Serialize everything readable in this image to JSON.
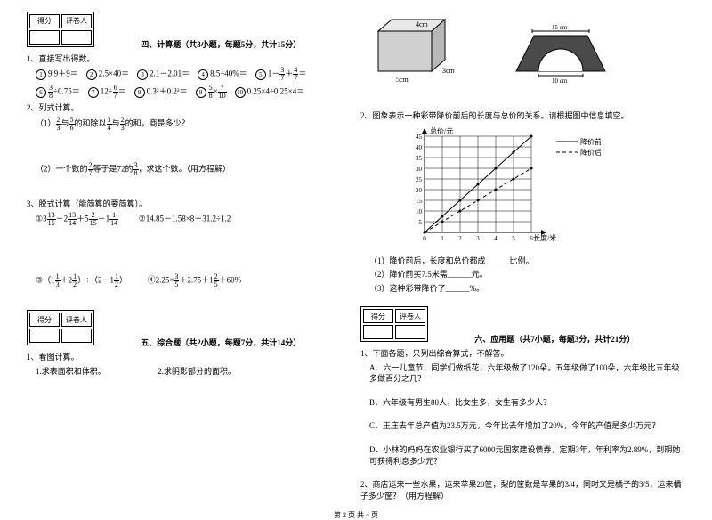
{
  "scorebox": {
    "score_label": "得分",
    "reviewer_label": "评卷人"
  },
  "sec4": {
    "title": "四、计算题（共3小题，每题5分，共计15分）",
    "q1": {
      "stem": "1、直接写出得数。",
      "i1": "9.9＋9＝",
      "i2": "2.5×40＝",
      "i3": "2.1－2.01＝",
      "i4": "8.5÷40%＝",
      "i6_pre": "÷0.75＝",
      "i8": "0.3²＋0.2²＝",
      "i10": "0.25×4÷0.25×4＝"
    },
    "q2": {
      "stem": "2、列式计算。",
      "p1_a": "（1）",
      "p1_b": "与",
      "p1_c": "的和除以",
      "p1_d": "与",
      "p1_e": "的和，商是多少？",
      "p2_a": "（2）一个数的",
      "p2_b": "等于是72的",
      "p2_c": "，求这个数。（用方程解）"
    },
    "q3": {
      "stem": "3、脱式计算（能简算的要简算）。",
      "i2": "②14.85－1.58×8＋31.2÷1.2",
      "i4": "④2.25×"
    }
  },
  "sec5": {
    "title": "五、综合题（共2小题，每题7分，共计14分）",
    "q1": {
      "stem": "1、看图计算。",
      "p1": "1.求表面积和体积。",
      "p2": "2.求阴影部分的面积。"
    },
    "cube": {
      "w_label": "5cm",
      "d_label": "3cm",
      "h_label": "4cm"
    },
    "trap": {
      "top": "15 cm",
      "arc": "10 cm"
    },
    "q2": {
      "stem": "2、图象表示一种彩带降价前后的长度与总价的关系。请根据图中信息填空。",
      "p1": "（1）降价前后，长度和总价都成______比例。",
      "p2": "（2）降价前买7.5米需______元。",
      "p3": "（3）这种彩带降价了______%。"
    },
    "chart": {
      "y_label": "总价/元",
      "x_label": "长度/米",
      "legend_before": "降价前",
      "legend_after": "降价后",
      "x_ticks": [
        "0",
        "1",
        "2",
        "3",
        "4",
        "5",
        "6"
      ],
      "y_ticks": [
        "5",
        "10",
        "15",
        "20",
        "25",
        "30",
        "35",
        "40",
        "45"
      ],
      "xlim": [
        0,
        6
      ],
      "ylim": [
        0,
        45
      ],
      "before": [
        [
          0,
          0
        ],
        [
          6,
          45
        ]
      ],
      "after": [
        [
          0,
          0
        ],
        [
          6,
          30
        ]
      ],
      "grid_color": "#000000",
      "bg": "#ffffff"
    }
  },
  "sec6": {
    "title": "六、应用题（共7小题，每题3分，共计21分）",
    "q1": {
      "stem": "1、下面各题，只列出综合算式，不解答。",
      "a": "A．六一儿童节，同学们做纸花，六年级做了120朵，五年级做了100朵，六年级比五年级多做百分之几？",
      "b": "B．六年级有男生80人，比女生多，女生有多少人？",
      "c": "C．王庄去年总产值为23.5万元，今年比去年增加了20%，今年的产值是多少万元？",
      "d": "D．小林的妈妈在农业银行买了6000元国家建设债券，定期3年，年利率为2.89%，到期她可获得利息多少元？"
    },
    "q2": "2、商店运来一些水果，运来苹果20筐，梨的筐数是苹果的3/4，同时又是橘子的3/5，运来橘子多少筐？（用方程解）"
  },
  "footer": "第 2 页 共 4 页"
}
